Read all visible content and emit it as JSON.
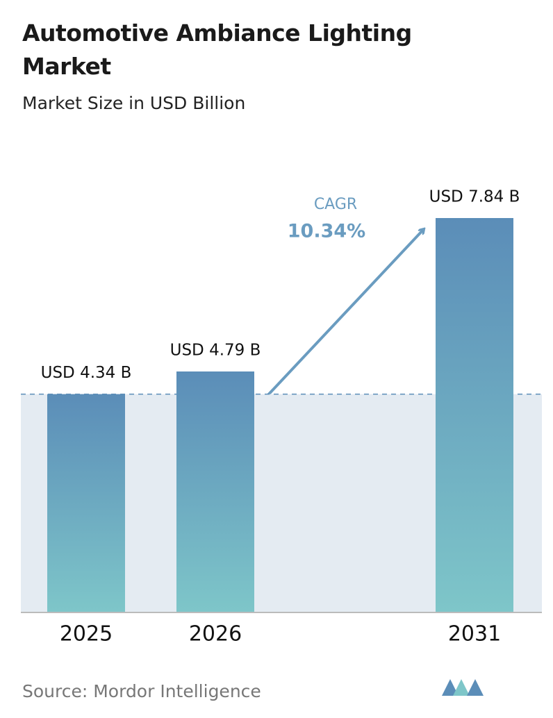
{
  "chart_data": {
    "type": "bar",
    "title": "Automotive Ambiance Lighting Market",
    "subtitle": "Market Size in USD Billion",
    "categories": [
      "2025",
      "2026",
      "2031"
    ],
    "values": [
      4.34,
      4.79,
      7.84
    ],
    "value_labels": [
      "USD 4.34 B",
      "USD 4.79 B",
      "USD 7.84 B"
    ],
    "color": "#5b8db8",
    "annotation": {
      "label": "CAGR",
      "value": "10.34%"
    },
    "source": "Source:  Mordor Intelligence"
  }
}
